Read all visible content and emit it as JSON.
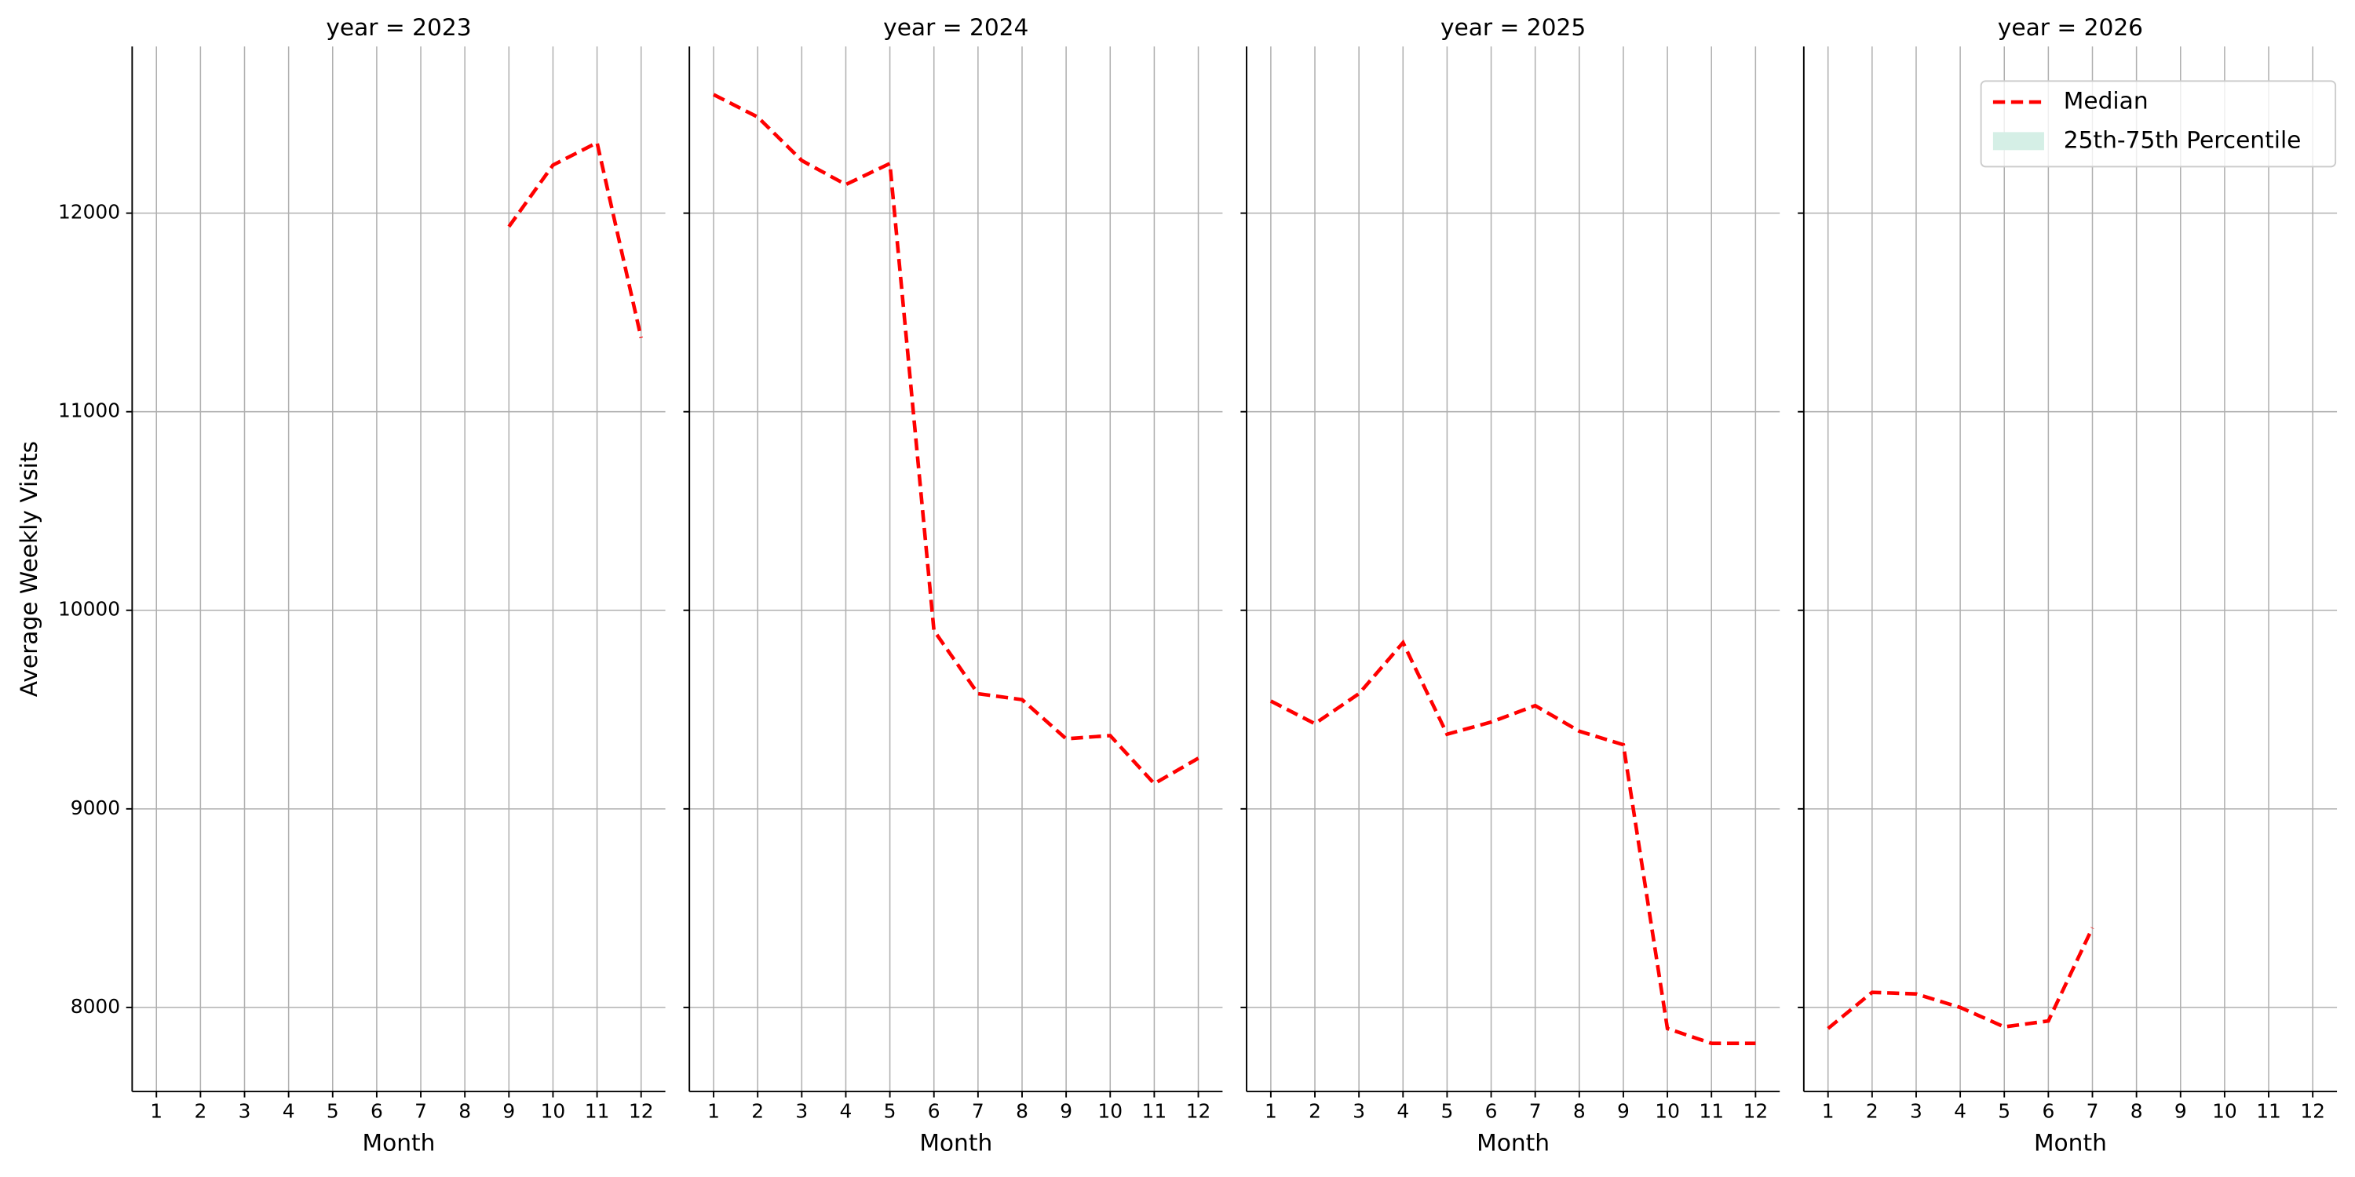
{
  "chart_data": [
    {
      "type": "line",
      "title": "year = 2023",
      "xlabel": "Month",
      "ylabel": "Average Weekly Visits",
      "x": [
        1,
        2,
        3,
        4,
        5,
        6,
        7,
        8,
        9,
        10,
        11,
        12
      ],
      "values": [
        null,
        null,
        null,
        null,
        null,
        null,
        null,
        null,
        11932,
        12242,
        12355,
        11372
      ],
      "color": "#ff0000",
      "linestyle": "dashed",
      "xlim": [
        0.45,
        12.55
      ],
      "ylim": [
        7577,
        12839
      ],
      "yticks": [
        8000,
        9000,
        10000,
        11000,
        12000
      ],
      "grid": true
    },
    {
      "type": "line",
      "title": "year = 2024",
      "xlabel": "Month",
      "x": [
        1,
        2,
        3,
        4,
        5,
        6,
        7,
        8,
        9,
        10,
        11,
        12
      ],
      "values": [
        12597,
        12484,
        12265,
        12144,
        12250,
        9898,
        9580,
        9550,
        9353,
        9369,
        9127,
        9255
      ],
      "color": "#ff0000",
      "linestyle": "dashed",
      "xlim": [
        0.45,
        12.55
      ],
      "ylim": [
        7577,
        12839
      ],
      "yticks": [
        8000,
        9000,
        10000,
        11000,
        12000
      ],
      "grid": true
    },
    {
      "type": "line",
      "title": "year = 2025",
      "xlabel": "Month",
      "x": [
        1,
        2,
        3,
        4,
        5,
        6,
        7,
        8,
        9,
        10,
        11,
        12
      ],
      "values": [
        9543,
        9429,
        9580,
        9837,
        9376,
        9437,
        9520,
        9391,
        9323,
        7894,
        7819,
        7819
      ],
      "color": "#ff0000",
      "linestyle": "dashed",
      "xlim": [
        0.45,
        12.55
      ],
      "ylim": [
        7577,
        12839
      ],
      "yticks": [
        8000,
        9000,
        10000,
        11000,
        12000
      ],
      "grid": true
    },
    {
      "type": "line",
      "title": "year = 2026",
      "xlabel": "Month",
      "x": [
        1,
        2,
        3,
        4,
        5,
        6,
        7,
        8,
        9,
        10,
        11,
        12
      ],
      "values": [
        7894,
        8076,
        8068,
        8000,
        7902,
        7932,
        8401,
        null,
        null,
        null,
        null,
        null
      ],
      "color": "#ff0000",
      "linestyle": "dashed",
      "xlim": [
        0.45,
        12.55
      ],
      "ylim": [
        7577,
        12839
      ],
      "yticks": [
        8000,
        9000,
        10000,
        11000,
        12000
      ],
      "grid": true,
      "legend": {
        "loc": "upper right",
        "entries": [
          {
            "name": "Median",
            "color": "#ff0000",
            "linestyle": "dashed"
          },
          {
            "name": "25th-75th Percentile",
            "color": "#d5efe6"
          }
        ]
      }
    }
  ]
}
